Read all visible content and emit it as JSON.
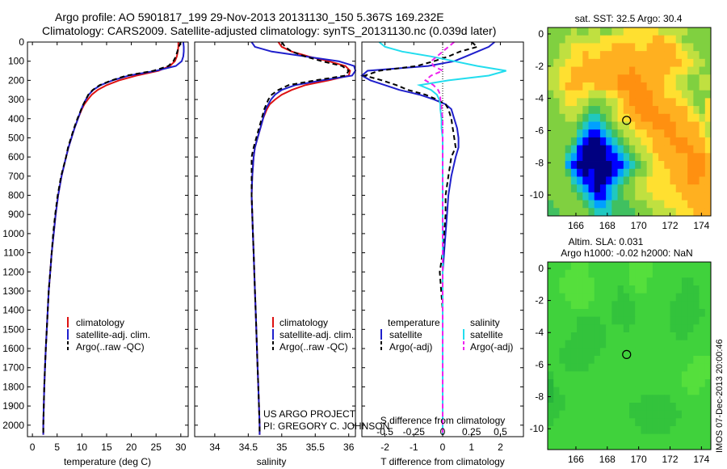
{
  "header": {
    "line1": "Argo profile: AO 5901817_199 29-Nov-2013 20131130_150 5.367S 169.232E",
    "line2": "Climatology: CARS2009. Satellite-adjusted climatology: synTS_20131130.nc (0.039d later)"
  },
  "credits": {
    "project": "US ARGO PROJECT",
    "pi": "PI: GREGORY C. JOHNSON",
    "footer": "IMOS 07-Dec-2013 20:00:46"
  },
  "colors": {
    "climatology": "#dd1111",
    "satellite": "#1f1fcc",
    "argo": "#000000",
    "sal_satellite": "#22ddee",
    "sal_argo": "#ee22ee",
    "pressure_ref": "#000000"
  },
  "depth_ticks": [
    0,
    100,
    200,
    300,
    400,
    500,
    600,
    700,
    800,
    900,
    1000,
    1100,
    1200,
    1300,
    1400,
    1500,
    1600,
    1700,
    1800,
    1900,
    2000
  ],
  "chart_data": [
    {
      "type": "line",
      "id": "temperature",
      "xlabel": "temperature (deg C)",
      "xlim": [
        -1,
        31.5
      ],
      "ylim": [
        2060,
        0
      ],
      "xticks": [
        0,
        5,
        10,
        15,
        20,
        25,
        30
      ],
      "xtick_labels": [
        "0",
        "5",
        "10",
        "15",
        "20",
        "25",
        "30"
      ],
      "legend": [
        "climatology",
        "satellite-adj. clim.",
        "Argo(..raw -QC)"
      ],
      "depth": [
        0,
        25,
        50,
        75,
        100,
        125,
        150,
        175,
        200,
        225,
        250,
        275,
        300,
        325,
        350,
        400,
        450,
        500,
        550,
        600,
        700,
        800,
        900,
        1000,
        1100,
        1200,
        1300,
        1400,
        1500,
        1600,
        1700,
        1800,
        1900,
        2000,
        2050
      ],
      "series": [
        {
          "name": "climatology",
          "style": "clim",
          "values": [
            29.5,
            29.5,
            29.4,
            29.2,
            28.8,
            27.8,
            25.5,
            21.0,
            17.5,
            15.0,
            13.2,
            12.0,
            11.2,
            10.5,
            10.0,
            9.2,
            8.5,
            7.9,
            7.3,
            6.8,
            5.9,
            5.2,
            4.7,
            4.3,
            3.9,
            3.6,
            3.3,
            3.1,
            2.9,
            2.7,
            2.55,
            2.4,
            2.3,
            2.2,
            2.2
          ]
        },
        {
          "name": "satellite-adj. clim.",
          "style": "sat",
          "values": [
            30.5,
            30.6,
            30.6,
            30.5,
            30.2,
            29.0,
            25.0,
            19.5,
            16.2,
            13.8,
            12.3,
            11.4,
            10.8,
            10.3,
            9.9,
            9.2,
            8.5,
            7.9,
            7.3,
            6.8,
            5.9,
            5.2,
            4.7,
            4.3,
            3.9,
            3.6,
            3.3,
            3.1,
            2.9,
            2.7,
            2.55,
            2.4,
            2.3,
            2.2,
            2.2
          ]
        },
        {
          "name": "Argo(..raw -QC)",
          "style": "argo",
          "values": [
            30.0,
            29.6,
            29.3,
            29.0,
            28.5,
            27.5,
            24.5,
            19.0,
            16.0,
            13.6,
            12.2,
            11.3,
            10.8,
            10.3,
            9.9,
            9.1,
            8.4,
            7.8,
            7.2,
            6.8,
            5.8,
            5.1,
            4.6,
            4.2,
            3.9,
            3.6,
            3.3,
            3.1,
            2.9,
            2.7,
            2.55,
            2.4,
            2.3,
            2.2,
            2.2
          ]
        }
      ]
    },
    {
      "type": "line",
      "id": "salinity",
      "xlabel": "salinity",
      "xlim": [
        33.7,
        36.1
      ],
      "ylim": [
        2060,
        0
      ],
      "xticks": [
        34,
        34.5,
        35,
        35.5,
        36
      ],
      "xtick_labels": [
        "34",
        "34.5",
        "35",
        "35.5",
        "36"
      ],
      "legend": [
        "climatology",
        "satellite-adj. clim.",
        "Argo(..raw -QC)"
      ],
      "depth": [
        0,
        25,
        50,
        75,
        100,
        125,
        150,
        175,
        200,
        225,
        250,
        275,
        300,
        325,
        350,
        400,
        450,
        500,
        550,
        600,
        700,
        800,
        900,
        1000,
        1100,
        1200,
        1300,
        1400,
        1500,
        1600,
        1700,
        1800,
        1900,
        2000,
        2050
      ],
      "series": [
        {
          "name": "climatology",
          "style": "clim",
          "values": [
            34.95,
            35.0,
            35.15,
            35.4,
            35.7,
            35.95,
            36.02,
            36.0,
            35.7,
            35.35,
            35.15,
            35.0,
            34.9,
            34.82,
            34.78,
            34.72,
            34.68,
            34.64,
            34.6,
            34.58,
            34.56,
            34.55,
            34.56,
            34.57,
            34.58,
            34.59,
            34.6,
            34.61,
            34.62,
            34.63,
            34.64,
            34.65,
            34.66,
            34.67,
            34.67
          ]
        },
        {
          "name": "satellite-adj. clim.",
          "style": "sat",
          "values": [
            34.55,
            34.6,
            34.85,
            35.35,
            35.85,
            36.08,
            36.1,
            36.05,
            35.6,
            35.2,
            35.0,
            34.9,
            34.84,
            34.8,
            34.76,
            34.72,
            34.68,
            34.64,
            34.6,
            34.58,
            34.56,
            34.55,
            34.56,
            34.57,
            34.58,
            34.59,
            34.6,
            34.61,
            34.62,
            34.63,
            34.64,
            34.65,
            34.66,
            34.67,
            34.67
          ]
        },
        {
          "name": "Argo(..raw -QC)",
          "style": "argo",
          "values": [
            35.0,
            35.05,
            35.15,
            35.35,
            35.6,
            35.9,
            36.0,
            35.95,
            35.5,
            35.1,
            34.95,
            34.85,
            34.8,
            34.77,
            34.74,
            34.7,
            34.66,
            34.62,
            34.58,
            34.55,
            34.55,
            34.55,
            34.56,
            34.57,
            34.58,
            34.59,
            34.6,
            34.61,
            34.62,
            34.63,
            34.64,
            34.65,
            34.66,
            34.67,
            34.67
          ]
        }
      ]
    },
    {
      "type": "line",
      "id": "difference",
      "xlabel": "T difference from climatology",
      "xlabel_top": "S difference from climatology",
      "xlim": [
        -2.8,
        2.8
      ],
      "ylim": [
        2060,
        0
      ],
      "xticks": [
        -2,
        -1,
        0,
        1,
        2
      ],
      "xtick_labels": [
        "-2",
        "-1",
        "0",
        "1",
        "2"
      ],
      "xticks_s": [
        -0.5,
        -0.25,
        0,
        0.25,
        0.5
      ],
      "xtick_labels_s": [
        "-0.5",
        "-0.25",
        "0",
        "0.25",
        "0.5"
      ],
      "s_scale": 4,
      "legend_headers": [
        "temperature",
        "salinity"
      ],
      "legend": [
        "satellite",
        "Argo(-adj)",
        "satellite",
        "Argo(-adj)"
      ],
      "depth": [
        0,
        25,
        50,
        75,
        100,
        125,
        150,
        175,
        200,
        225,
        250,
        275,
        300,
        325,
        350,
        400,
        450,
        500,
        550,
        600,
        700,
        800,
        900,
        1000,
        1100,
        1200,
        1300,
        1400,
        1500,
        1600,
        1700,
        1800,
        1900,
        2000,
        2050
      ],
      "series": [
        {
          "name": "T satellite",
          "style": "sat",
          "var": "T",
          "values": [
            1.8,
            1.6,
            1.2,
            0.8,
            0.4,
            -0.5,
            -2.6,
            -2.8,
            -2.5,
            -2.0,
            -1.5,
            -0.8,
            -0.3,
            0.1,
            0.3,
            0.4,
            0.5,
            0.55,
            0.55,
            0.45,
            0.3,
            0.2,
            0.15,
            0.1,
            0.05,
            0.0,
            0.0,
            0.0,
            0.0,
            0.0,
            0.0,
            0.0,
            0.0,
            0.0,
            0.0
          ]
        },
        {
          "name": "T Argo(-adj)",
          "style": "argo",
          "var": "T",
          "values": [
            1.0,
            1.2,
            0.6,
            0.2,
            -0.3,
            -0.9,
            -2.2,
            -2.7,
            -2.1,
            -1.6,
            -1.2,
            -0.6,
            -0.2,
            0.1,
            0.2,
            0.3,
            0.35,
            0.4,
            0.45,
            0.3,
            0.2,
            0.1,
            0.1,
            0.05,
            0.0,
            -0.1,
            -0.05,
            0.0,
            0.0,
            0.0,
            0.0,
            0.0,
            0.0,
            0.0,
            0.0
          ]
        },
        {
          "name": "S satellite",
          "style": "ssat",
          "var": "S",
          "values": [
            -0.55,
            -0.5,
            -0.35,
            -0.1,
            0.1,
            0.3,
            0.55,
            0.4,
            0.05,
            -0.2,
            -0.1,
            -0.05,
            -0.03,
            -0.02,
            -0.02,
            -0.01,
            -0.01,
            0.0,
            0.0,
            0.0,
            0.0,
            0.0,
            0.0,
            0.0,
            0.0,
            0.0,
            0.0,
            0.0,
            0.0,
            0.0,
            0.0,
            0.0,
            0.0,
            0.0,
            0.0
          ]
        },
        {
          "name": "S Argo(-adj)",
          "style": "sargo",
          "var": "S",
          "values": [
            0.1,
            0.05,
            0.0,
            -0.05,
            -0.1,
            -0.08,
            0.0,
            -0.1,
            -0.15,
            -0.08,
            -0.04,
            -0.02,
            -0.02,
            -0.01,
            -0.01,
            0.0,
            0.0,
            0.0,
            0.0,
            0.0,
            0.0,
            0.0,
            0.0,
            0.0,
            0.0,
            0.0,
            0.0,
            0.0,
            0.0,
            0.0,
            0.0,
            0.0,
            0.0,
            0.0,
            0.0
          ]
        }
      ]
    },
    {
      "type": "heatmap",
      "id": "sst_map",
      "title": "sat. SST: 32.5 Argo: 30.4",
      "xlim": [
        164.2,
        174.6
      ],
      "ylim": [
        -11.3,
        0.4
      ],
      "xticks": [
        166,
        168,
        170,
        172,
        174
      ],
      "xtick_labels": [
        "166",
        "168",
        "170",
        "172",
        "174"
      ],
      "yticks": [
        0,
        -2,
        -4,
        -6,
        -8,
        -10
      ],
      "ytick_labels": [
        "0",
        "-2",
        "-4",
        "-6",
        "-8",
        "-10"
      ],
      "marker": {
        "lon": 169.232,
        "lat": -5.367
      },
      "palette": [
        "#000080",
        "#0000ff",
        "#00a0ff",
        "#20c8c0",
        "#40c060",
        "#80d040",
        "#c0e040",
        "#ffe030",
        "#ffb020",
        "#ff9010"
      ],
      "grid": [
        "5555655665566777777666665555",
        "5556666667777777778877655555",
        "5566777777788887788888766555",
        "5566778778888888888888776655",
        "5667778888888888888888877665",
        "6677888888888898888887776655",
        "6677888888889999888877665566",
        "6678887788889999988877665566",
        "5667777666778899998877766555",
        "5567766555667899998888776557",
        "5566665445567889999888887657",
        "5556654334567788999998887767",
        "5555543223456678889999888876",
        "5555532112345667788899888876",
        "5555421001234566778889998887",
        "5554310000123456678888999887",
        "5553210000112345667888889998",
        "5552100000011234567788889998",
        "5554210100012345567778889998",
        "5555321100123456677778889988",
        "5555432101234556677777888888",
        "5555543211234556667777788888",
        "4555554322344455566677778888",
        "4455555433344445556666777888"
      ]
    },
    {
      "type": "heatmap",
      "id": "sla_map",
      "title": "Altim. SLA: 0.031",
      "subtitle": "Argo h1000: -0.02 h2000: NaN",
      "xlim": [
        164.2,
        174.6
      ],
      "ylim": [
        -11.3,
        0.4
      ],
      "xticks": [
        166,
        168,
        170,
        172,
        174
      ],
      "xtick_labels": [
        "166",
        "168",
        "170",
        "172",
        "174"
      ],
      "yticks": [
        0,
        -2,
        -4,
        -6,
        -8,
        -10
      ],
      "ytick_labels": [
        "0",
        "-2",
        "-4",
        "-6",
        "-8",
        "-10"
      ],
      "marker": {
        "lon": 169.232,
        "lat": -5.367
      },
      "palette": [
        "#1fa53a",
        "#28b43c",
        "#33c33c",
        "#40d23c",
        "#55df3c",
        "#6ae93c",
        "#7ff03c",
        "#95f53c"
      ],
      "grid": [
        "3333444333333344443333333333",
        "3334444333333344443333333333",
        "3344444433333344433333322333",
        "3344444433332334433333322233",
        "3334444433332233333333222233",
        "3333444333322223333332222233",
        "3333333333322223333332222223",
        "3333322223322223333332222233",
        "3333322222333233333332222333",
        "3333222222333333333333223333",
        "3332222222333333333333333333",
        "3322222223333333333333333333",
        "3322222233333333333333333444",
        "3332222333333333333333334444",
        "2333333333333333333333344444",
        "1333333333333333333333344443",
        "1233333333333333333333334433",
        "1223333333333333222223333333",
        "2223333333333322222222333333",
        "2233333333333322222222233333",
        "2333333333333332222222333333",
        "3333333333333333222223333333",
        "3333333333333333333333333333",
        "3333333333333333333333333333"
      ]
    }
  ]
}
